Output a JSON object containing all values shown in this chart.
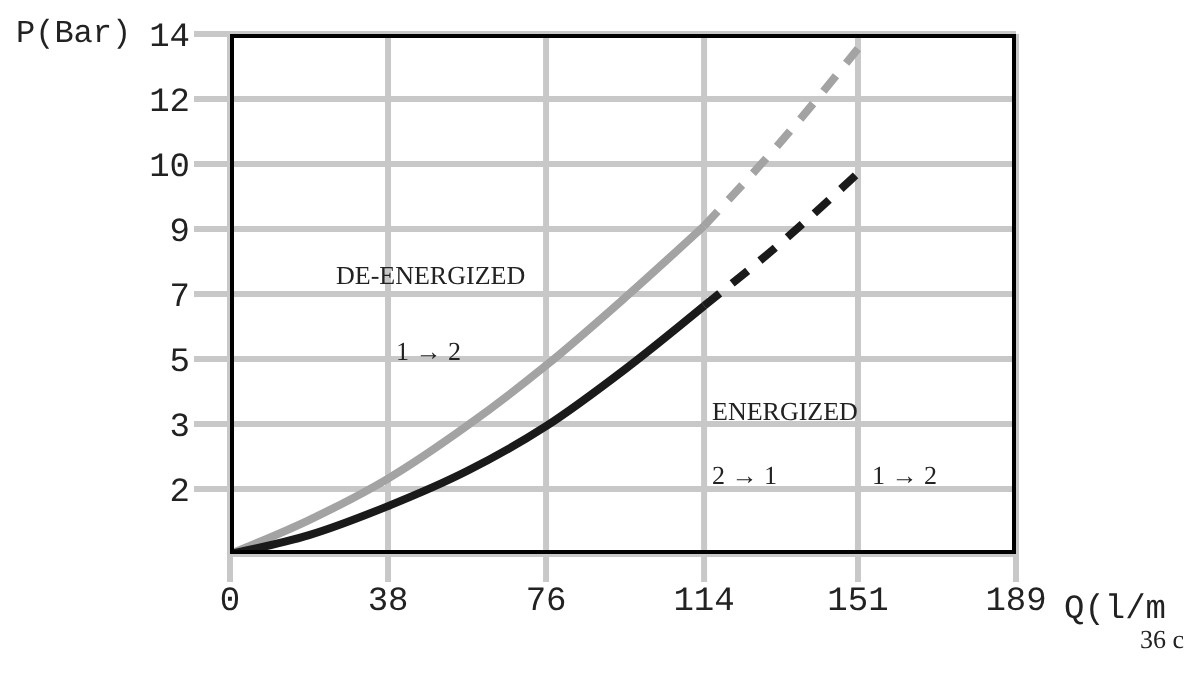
{
  "chart_data": {
    "type": "line",
    "xlabel": "Q(l/m",
    "ylabel": "P(Bar)",
    "xlim": [
      0,
      189
    ],
    "xticks": [
      0,
      38,
      76,
      114,
      151,
      189
    ],
    "ylim": [
      0,
      13.79
    ],
    "yticks": [
      {
        "value": 1.724,
        "label": "2"
      },
      {
        "value": 3.447,
        "label": "3"
      },
      {
        "value": 5.171,
        "label": "5"
      },
      {
        "value": 6.895,
        "label": "7"
      },
      {
        "value": 8.618,
        "label": "9"
      },
      {
        "value": 10.342,
        "label": "10"
      },
      {
        "value": 12.066,
        "label": "12"
      },
      {
        "value": 13.79,
        "label": "14"
      }
    ],
    "grid": true,
    "marker": "none",
    "series": [
      {
        "color": "#a3a3a3",
        "line_style": "solid",
        "x": [
          0,
          19,
          38,
          57,
          76,
          95,
          114
        ],
        "values": [
          0,
          0.9,
          2.0,
          3.4,
          5.0,
          6.8,
          8.7
        ]
      },
      {
        "color": "#a3a3a3",
        "line_style": "dashed",
        "x": [
          114,
          133,
          151
        ],
        "values": [
          8.7,
          11.0,
          13.4
        ]
      },
      {
        "color": "#1a1a1a",
        "line_style": "solid",
        "x": [
          0,
          19,
          38,
          57,
          76,
          95,
          114
        ],
        "values": [
          0,
          0.5,
          1.27,
          2.2,
          3.39,
          4.9,
          6.58
        ]
      },
      {
        "color": "#1a1a1a",
        "line_style": "dashed",
        "x": [
          114,
          133,
          151
        ],
        "values": [
          6.58,
          8.3,
          10.1
        ]
      }
    ],
    "annotations": [
      "DE-ENERGIZED",
      "1 → 2",
      "ENERGIZED",
      "2 → 1",
      "1 → 2",
      "36 c"
    ]
  }
}
